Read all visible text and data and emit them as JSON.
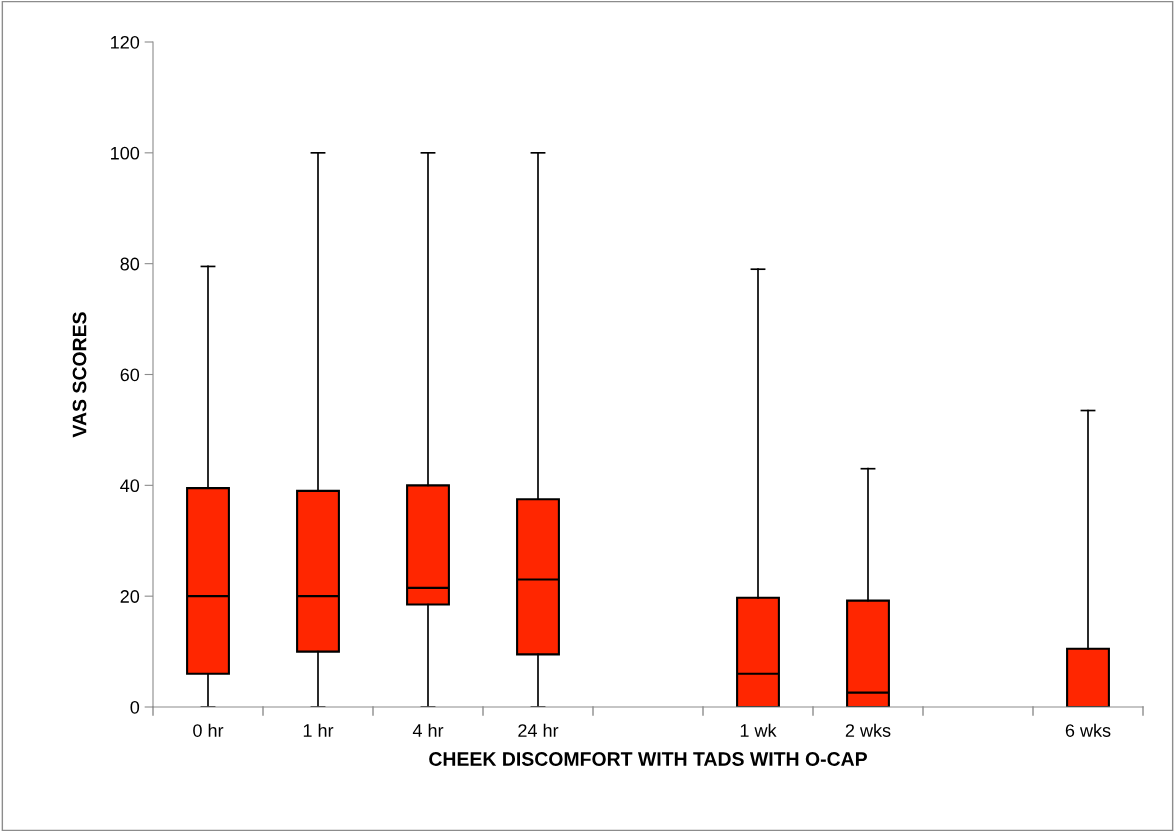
{
  "chart_data": {
    "type": "box",
    "xlabel": "CHEEK DISCOMFORT WITH TADS WITH O-CAP",
    "ylabel": "VAS SCORES",
    "categories": [
      "0 hr",
      "1 hr",
      "4 hr",
      "24 hr",
      null,
      "1 wk",
      "2 wks",
      null,
      "6 wks"
    ],
    "color": "#ff2600",
    "boxes": [
      {
        "low": 0,
        "q1": 6,
        "median": 20,
        "q3": 39.5,
        "high": 79.5
      },
      {
        "low": 0,
        "q1": 10,
        "median": 20,
        "q3": 39,
        "high": 100
      },
      {
        "low": 0,
        "q1": 18.5,
        "median": 21.5,
        "q3": 40,
        "high": 100
      },
      {
        "low": 0,
        "q1": 9.5,
        "median": 23,
        "q3": 37.5,
        "high": 100
      },
      null,
      {
        "low": 0,
        "q1": 0,
        "median": 6,
        "q3": 19.7,
        "high": 79
      },
      {
        "low": 0,
        "q1": 0,
        "median": 2.6,
        "q3": 19.2,
        "high": 43
      },
      null,
      {
        "low": 0,
        "q1": 0,
        "median": 0,
        "q3": 10.5,
        "high": 53.5
      }
    ],
    "ylim": [
      0,
      120
    ],
    "yticks": [
      0,
      20,
      40,
      60,
      80,
      100,
      120
    ],
    "grid": false,
    "legend": false
  }
}
